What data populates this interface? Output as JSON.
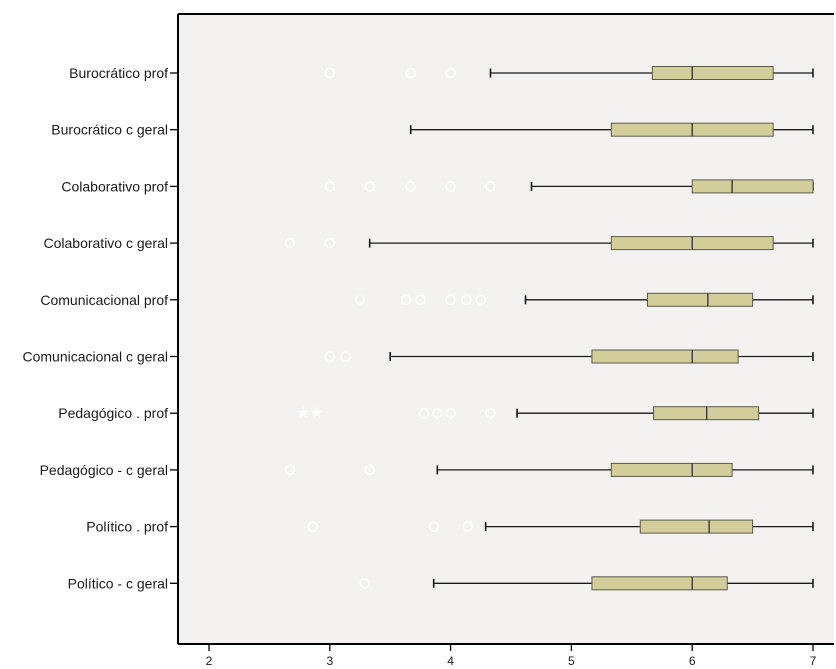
{
  "chart_data": {
    "type": "boxplot",
    "orientation": "horizontal",
    "title": "",
    "xlabel": "",
    "ylabel": "",
    "xlim": [
      1.75,
      7.0
    ],
    "xticks": [
      2,
      3,
      4,
      5,
      6,
      7
    ],
    "grid": false,
    "colors": {
      "plot_bg": "#f3f2f1",
      "box_fill": "#d3cd99",
      "box_stroke": "#5a5a4a",
      "whisker": "#1a1a1a",
      "outlier": "#ffffff"
    },
    "categories": [
      "Burocrático prof",
      "Burocrático c geral",
      "Colaborativo prof",
      "Colaborativo c geral",
      "Comunicacional prof",
      "Comunicacional c geral",
      "Pedagógico . prof",
      "Pedagógico - c geral",
      "Político . prof",
      "Político - c geral"
    ],
    "boxes": [
      {
        "min": 4.33,
        "q1": 5.67,
        "median": 6.0,
        "q3": 6.67,
        "max": 7.0,
        "outliers": [
          3.0,
          3.67,
          4.0
        ],
        "extremes": []
      },
      {
        "min": 3.67,
        "q1": 5.33,
        "median": 6.0,
        "q3": 6.67,
        "max": 7.0,
        "outliers": [],
        "extremes": []
      },
      {
        "min": 4.67,
        "q1": 6.0,
        "median": 6.33,
        "q3": 7.0,
        "max": 7.0,
        "outliers": [
          3.0,
          3.33,
          3.67,
          4.0,
          4.33
        ],
        "extremes": []
      },
      {
        "min": 3.33,
        "q1": 5.33,
        "median": 6.0,
        "q3": 6.67,
        "max": 7.0,
        "outliers": [
          2.67,
          3.0
        ],
        "extremes": []
      },
      {
        "min": 4.62,
        "q1": 5.63,
        "median": 6.13,
        "q3": 6.5,
        "max": 7.0,
        "outliers": [
          3.25,
          3.63,
          3.75,
          4.0,
          4.13,
          4.25
        ],
        "extremes": []
      },
      {
        "min": 3.5,
        "q1": 5.17,
        "median": 6.0,
        "q3": 6.38,
        "max": 7.0,
        "outliers": [
          3.0,
          3.13
        ],
        "extremes": []
      },
      {
        "min": 4.55,
        "q1": 5.68,
        "median": 6.12,
        "q3": 6.55,
        "max": 7.0,
        "outliers": [
          3.78,
          3.89,
          4.0,
          4.33
        ],
        "extremes": [
          2.78,
          2.89
        ]
      },
      {
        "min": 3.89,
        "q1": 5.33,
        "median": 6.0,
        "q3": 6.33,
        "max": 7.0,
        "outliers": [
          2.67,
          3.33
        ],
        "extremes": []
      },
      {
        "min": 4.29,
        "q1": 5.57,
        "median": 6.14,
        "q3": 6.5,
        "max": 7.0,
        "outliers": [
          2.86,
          3.86,
          4.14
        ],
        "extremes": []
      },
      {
        "min": 3.86,
        "q1": 5.17,
        "median": 6.0,
        "q3": 6.29,
        "max": 7.0,
        "outliers": [
          3.29
        ],
        "extremes": []
      }
    ]
  }
}
